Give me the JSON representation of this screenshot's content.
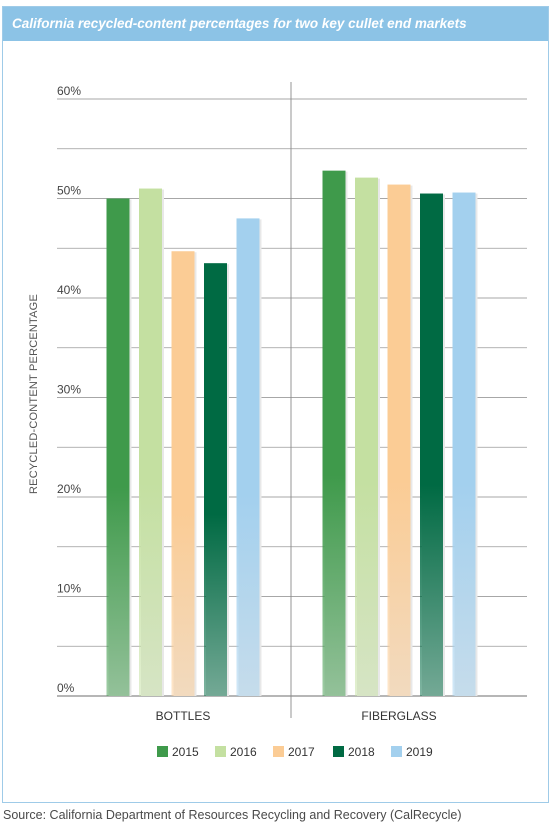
{
  "title": "California recycled-content percentages for two key cullet end markets",
  "source": "Source: California Department of Resources Recycling and Recovery (CalRecycle)",
  "chart_data": {
    "type": "bar",
    "title": "California recycled-content percentages for two key cullet end markets",
    "xlabel": "",
    "ylabel": "RECYCLED-CONTENT PERCENTAGE",
    "categories": [
      "BOTTLES",
      "FIBERGLASS"
    ],
    "yticks": [
      "0%",
      "10%",
      "20%",
      "30%",
      "40%",
      "50%",
      "60%"
    ],
    "ylim": [
      0,
      60
    ],
    "grid": true,
    "legend": "bottom",
    "series": [
      {
        "name": "2015",
        "color": "#3f9a4b",
        "values": [
          50,
          52.8
        ]
      },
      {
        "name": "2016",
        "color": "#c4e0a1",
        "values": [
          51,
          52.1
        ]
      },
      {
        "name": "2017",
        "color": "#fbcc95",
        "values": [
          44.7,
          51.4
        ]
      },
      {
        "name": "2018",
        "color": "#006a43",
        "values": [
          43.5,
          50.5
        ]
      },
      {
        "name": "2019",
        "color": "#a3d0ee",
        "values": [
          48,
          50.6
        ]
      }
    ]
  }
}
